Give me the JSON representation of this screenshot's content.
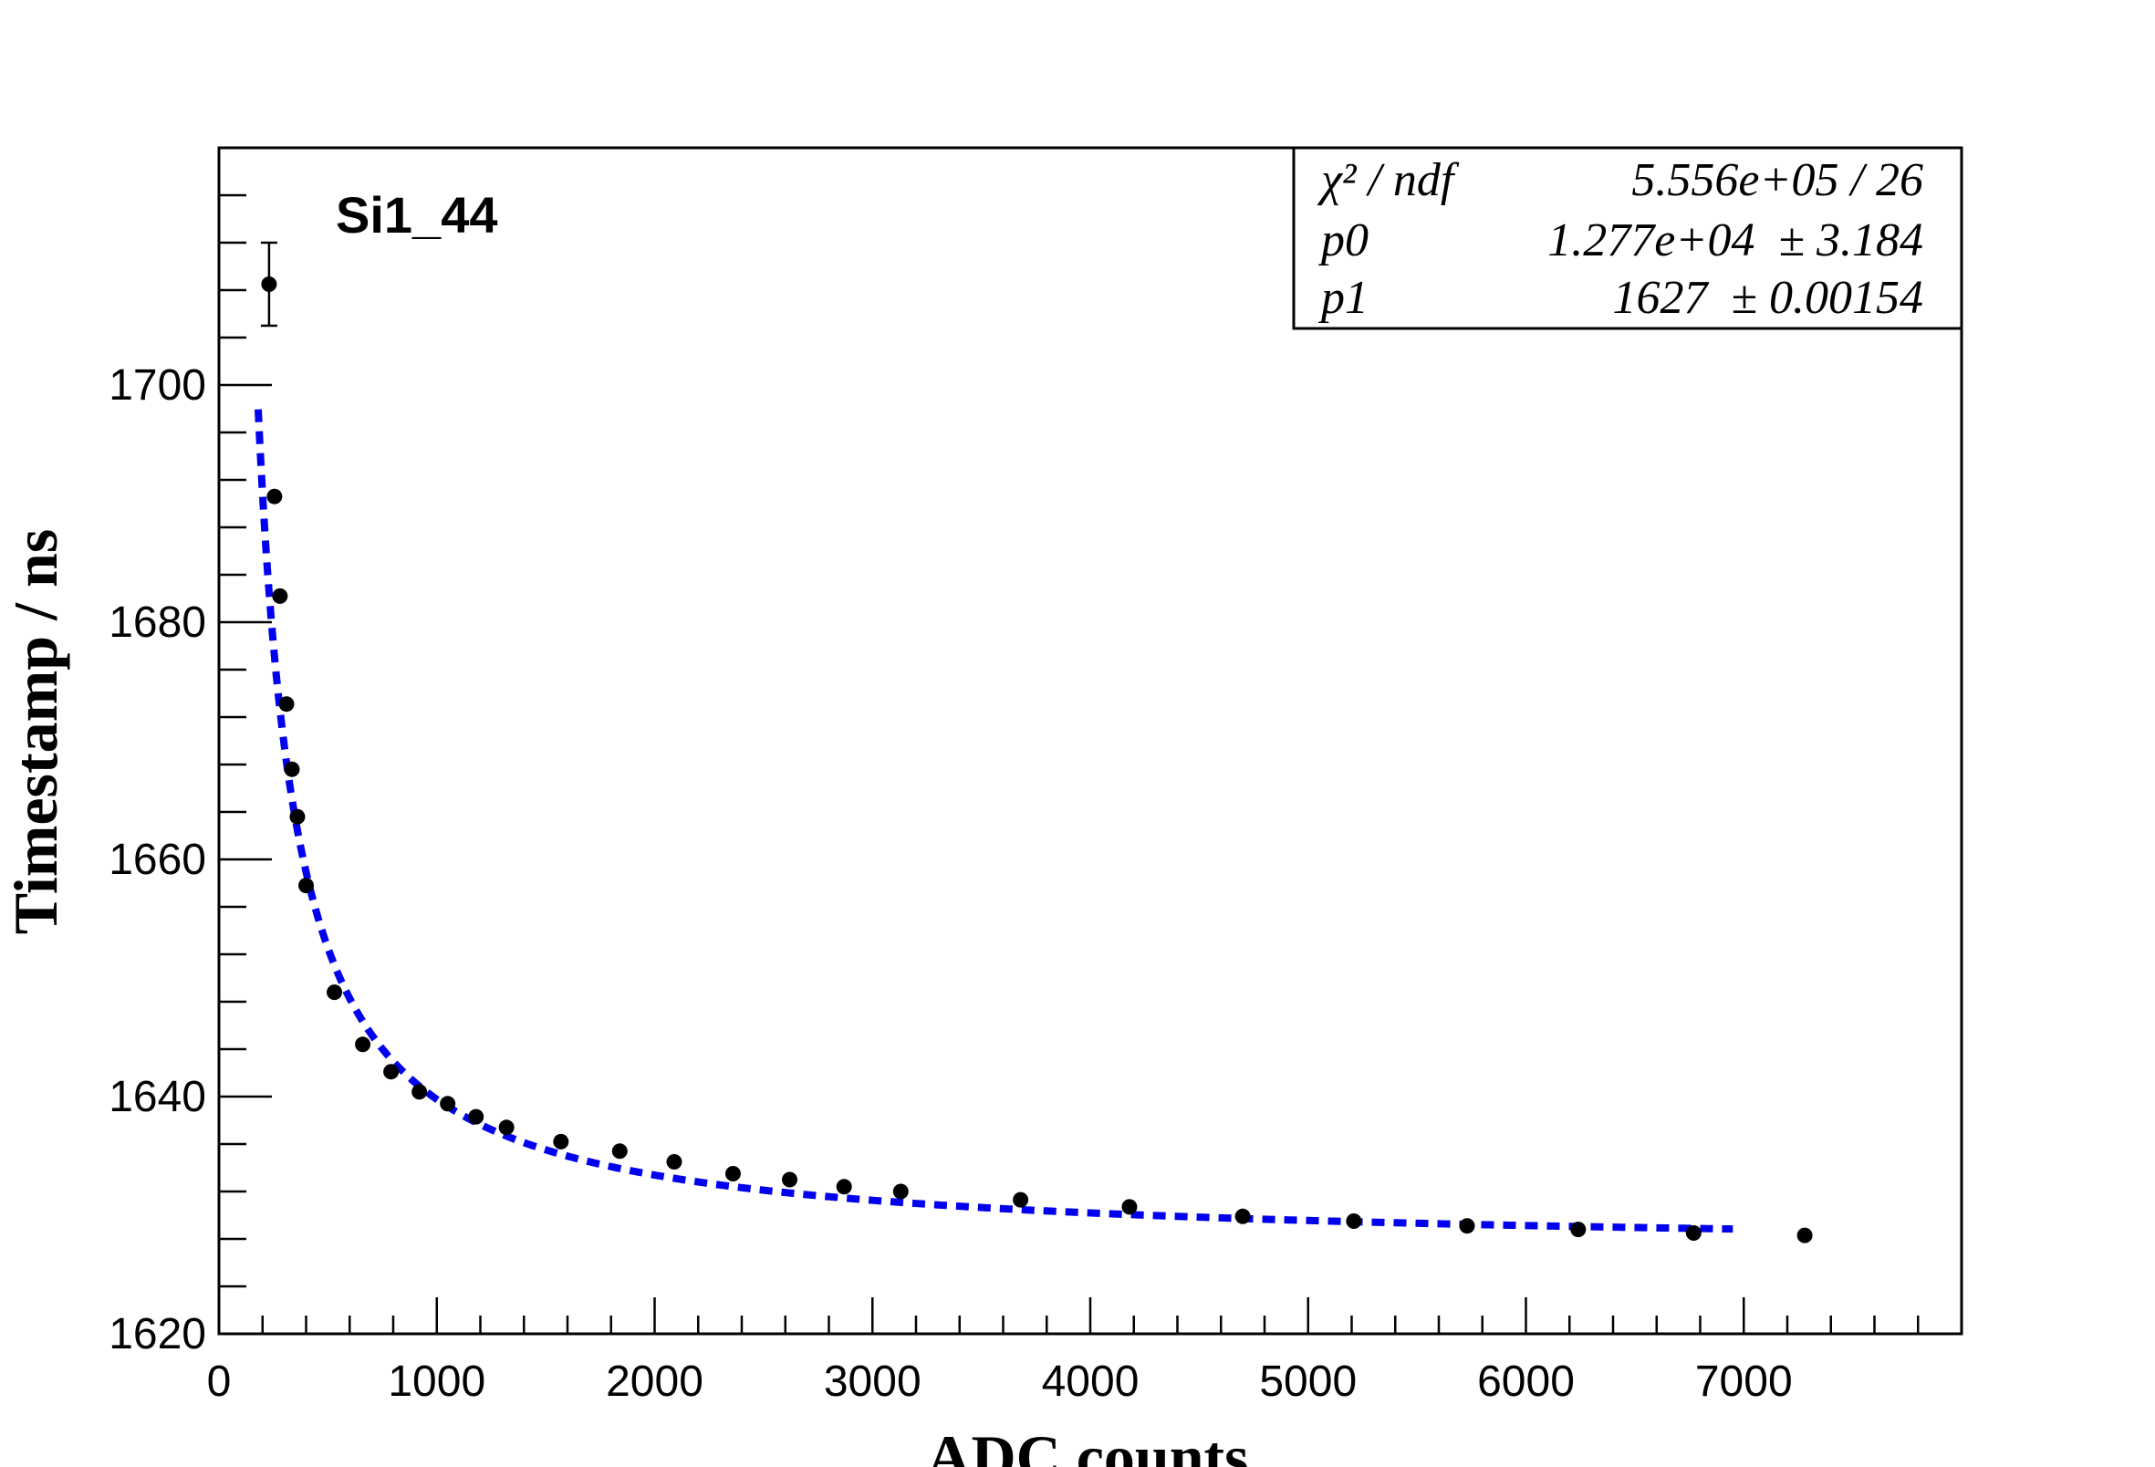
{
  "chart_data": {
    "type": "scatter",
    "title": "",
    "annotation": "Si1_44",
    "xlabel": "ADC counts",
    "ylabel": "Timestamp / ns",
    "xlim": [
      0,
      8000
    ],
    "ylim": [
      1620,
      1720
    ],
    "x_ticks": [
      "0",
      "1000",
      "2000",
      "3000",
      "4000",
      "5000",
      "6000",
      "7000"
    ],
    "x_tick_values": [
      0,
      1000,
      2000,
      3000,
      4000,
      5000,
      6000,
      7000
    ],
    "y_ticks": [
      "1620",
      "1640",
      "1660",
      "1680",
      "1700"
    ],
    "y_tick_values": [
      1620,
      1640,
      1660,
      1680,
      1700
    ],
    "grid": false,
    "colors": {
      "points": "#000000",
      "fit": "#0000ee",
      "frame": "#000000"
    },
    "points": [
      {
        "x": 230,
        "y": 1708.5,
        "yerr": 3.5
      },
      {
        "x": 255,
        "y": 1690.6
      },
      {
        "x": 280,
        "y": 1682.2
      },
      {
        "x": 310,
        "y": 1673.1
      },
      {
        "x": 335,
        "y": 1667.6
      },
      {
        "x": 360,
        "y": 1663.6
      },
      {
        "x": 400,
        "y": 1657.8
      },
      {
        "x": 530,
        "y": 1648.8
      },
      {
        "x": 660,
        "y": 1644.4
      },
      {
        "x": 790,
        "y": 1642.1
      },
      {
        "x": 920,
        "y": 1640.4
      },
      {
        "x": 1050,
        "y": 1639.4
      },
      {
        "x": 1180,
        "y": 1638.3
      },
      {
        "x": 1320,
        "y": 1637.4
      },
      {
        "x": 1570,
        "y": 1636.2
      },
      {
        "x": 1840,
        "y": 1635.4
      },
      {
        "x": 2090,
        "y": 1634.5
      },
      {
        "x": 2360,
        "y": 1633.5
      },
      {
        "x": 2620,
        "y": 1633.0
      },
      {
        "x": 2870,
        "y": 1632.4
      },
      {
        "x": 3130,
        "y": 1632.0
      },
      {
        "x": 3680,
        "y": 1631.3
      },
      {
        "x": 4180,
        "y": 1630.7
      },
      {
        "x": 4700,
        "y": 1629.9
      },
      {
        "x": 5210,
        "y": 1629.5
      },
      {
        "x": 5730,
        "y": 1629.1
      },
      {
        "x": 6240,
        "y": 1628.8
      },
      {
        "x": 6770,
        "y": 1628.5
      },
      {
        "x": 7280,
        "y": 1628.3
      }
    ],
    "fit": {
      "p0": 12770,
      "p1": 1627,
      "x_range": [
        180,
        6950
      ],
      "style": "dashed"
    },
    "stats_box": {
      "rows": [
        {
          "label": "χ² / ndf",
          "value": "5.556e+05 / 26"
        },
        {
          "label": "p0",
          "value": "1.277e+04  ± 3.184"
        },
        {
          "label": "p1",
          "value": "1627  ± 0.00154"
        }
      ],
      "placement": "top-right"
    }
  }
}
